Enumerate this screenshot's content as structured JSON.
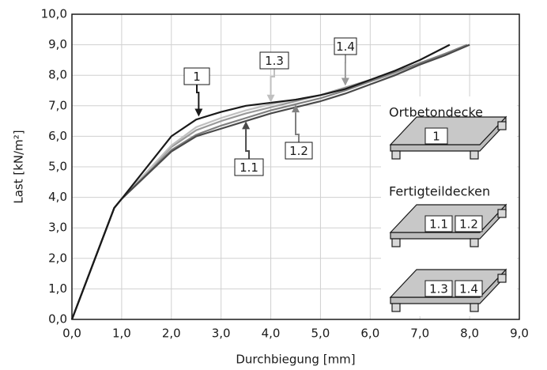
{
  "chart_data": {
    "type": "line",
    "xlabel": "Durchbiegung [mm]",
    "ylabel": "Last [kN/m²]",
    "xlim": [
      0,
      9
    ],
    "ylim": [
      0,
      10
    ],
    "grid": true,
    "xticks": [
      {
        "value": 0,
        "label": "0,0"
      },
      {
        "value": 1,
        "label": "1,0"
      },
      {
        "value": 2,
        "label": "2,0"
      },
      {
        "value": 3,
        "label": "3,0"
      },
      {
        "value": 4,
        "label": "4,0"
      },
      {
        "value": 5,
        "label": "5,0"
      },
      {
        "value": 6,
        "label": "6,0"
      },
      {
        "value": 7,
        "label": "7,0"
      },
      {
        "value": 8,
        "label": "8,0"
      },
      {
        "value": 9,
        "label": "9,0"
      }
    ],
    "yticks": [
      {
        "value": 0,
        "label": "0,0"
      },
      {
        "value": 1,
        "label": "1,0"
      },
      {
        "value": 2,
        "label": "2,0"
      },
      {
        "value": 3,
        "label": "3,0"
      },
      {
        "value": 4,
        "label": "4,0"
      },
      {
        "value": 5,
        "label": "5,0"
      },
      {
        "value": 6,
        "label": "6,0"
      },
      {
        "value": 7,
        "label": "7,0"
      },
      {
        "value": 8,
        "label": "8,0"
      },
      {
        "value": 9,
        "label": "9,0"
      },
      {
        "value": 10,
        "label": "10,0"
      }
    ],
    "series": [
      {
        "name": "1.4",
        "color": "#9a9a9a",
        "x": [
          0,
          0.85,
          1,
          2,
          2.5,
          3,
          3.5,
          4,
          4.5,
          5,
          5.5,
          6,
          6.5,
          7,
          7.5,
          8
        ],
        "values": [
          0,
          3.65,
          3.95,
          5.65,
          6.2,
          6.5,
          6.75,
          6.95,
          7.15,
          7.35,
          7.6,
          7.85,
          8.1,
          8.4,
          8.7,
          9.0
        ]
      },
      {
        "name": "1.3",
        "color": "#c0c0c0",
        "x": [
          0,
          0.85,
          1,
          2,
          2.5,
          3,
          3.5,
          4,
          4.5,
          5,
          5.5,
          6,
          6.5,
          7,
          7.5,
          8
        ],
        "values": [
          0,
          3.65,
          3.95,
          5.7,
          6.3,
          6.6,
          6.85,
          7.05,
          7.2,
          7.35,
          7.55,
          7.8,
          8.05,
          8.35,
          8.65,
          9.0
        ]
      },
      {
        "name": "1.2",
        "color": "#808080",
        "x": [
          0,
          0.85,
          1,
          2,
          2.5,
          3,
          3.5,
          4,
          4.5,
          5,
          5.5,
          6,
          6.5,
          7,
          7.5,
          7.95
        ],
        "values": [
          0,
          3.65,
          3.95,
          5.55,
          6.05,
          6.35,
          6.6,
          6.85,
          7.05,
          7.25,
          7.5,
          7.8,
          8.1,
          8.4,
          8.7,
          9.0
        ]
      },
      {
        "name": "1.1",
        "color": "#4a4a4a",
        "x": [
          0,
          0.85,
          1,
          2,
          2.5,
          3,
          3.5,
          4,
          4.5,
          5,
          5.5,
          6,
          6.5,
          7,
          7.5,
          8
        ],
        "values": [
          0,
          3.65,
          3.95,
          5.5,
          6.0,
          6.25,
          6.5,
          6.75,
          6.95,
          7.15,
          7.4,
          7.7,
          8.0,
          8.35,
          8.65,
          9.0
        ]
      },
      {
        "name": "1",
        "color": "#1a1a1a",
        "x": [
          0,
          0.85,
          1,
          2,
          2.5,
          3,
          3.5,
          4,
          4.5,
          5,
          5.5,
          6,
          6.5,
          7,
          7.6
        ],
        "values": [
          0,
          3.65,
          3.95,
          6.0,
          6.55,
          6.8,
          7.0,
          7.1,
          7.2,
          7.35,
          7.55,
          7.85,
          8.15,
          8.5,
          9.0
        ]
      }
    ],
    "legend_panel": {
      "headings": [
        "Ortbetondecke",
        "Fertigteildecken"
      ],
      "slabs": [
        [
          "1"
        ],
        [
          "1.1",
          "1.2"
        ],
        [
          "1.3",
          "1.4"
        ]
      ]
    }
  }
}
